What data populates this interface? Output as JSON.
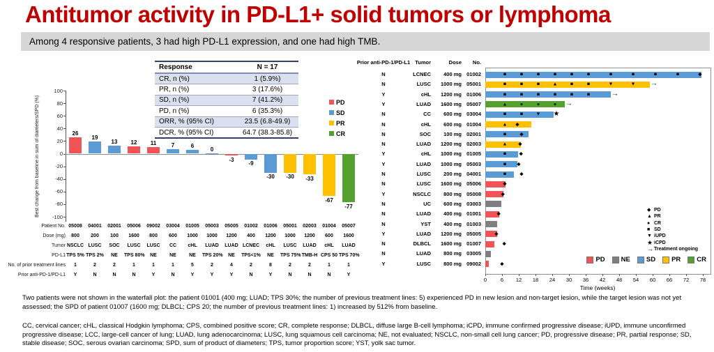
{
  "title": "Antitumor activity in PD-L1+ solid tumors or lymphoma",
  "subtitle": "Among 4 responsive patients, 3 had high PD-L1 expression, and one had high TMB.",
  "colors": {
    "pd": "#f05456",
    "sd": "#5b9bd5",
    "pr": "#ffc000",
    "cr": "#55a12f",
    "ne": "#7f7f7f",
    "title_red": "#c00000"
  },
  "response_table": {
    "header": [
      "Response",
      "N = 17"
    ],
    "rows": [
      [
        "CR, n (%)",
        "1 (5.9%)"
      ],
      [
        "PR, n (%)",
        "3 (17.6%)"
      ],
      [
        "SD, n (%)",
        "7 (41.2%)"
      ],
      [
        "PD, n (%)",
        "6 (35.3%)"
      ],
      [
        "ORR, % (95% CI)",
        "23.5 (6.8-49.9)"
      ],
      [
        "DCR, % (95% CI)",
        "64.7 (38.3-85.8)"
      ]
    ]
  },
  "waterfall_legend": [
    {
      "label": "PD",
      "color": "pd"
    },
    {
      "label": "SD",
      "color": "sd"
    },
    {
      "label": "PR",
      "color": "pr"
    },
    {
      "label": "CR",
      "color": "cr"
    }
  ],
  "chart_data": [
    {
      "type": "bar",
      "name": "waterfall",
      "ylabel": "Best change from baseline in sum of diameters/SPD (%)",
      "ylim": [
        -100,
        100
      ],
      "yticks": [
        100,
        80,
        60,
        40,
        20,
        0,
        -20,
        -40,
        -60,
        -80,
        -100
      ],
      "grid": false,
      "values": [
        26,
        19,
        13,
        12,
        11,
        7,
        6,
        0,
        -3,
        -9,
        -30,
        -30,
        -33,
        -67,
        -77
      ],
      "bar_colors": [
        "pd",
        "sd",
        "sd",
        "pd",
        "pd",
        "sd",
        "sd",
        "sd",
        "pd",
        "sd",
        "sd",
        "pr",
        "pr",
        "pr",
        "cr"
      ],
      "categories": [
        "05008",
        "04001",
        "02001",
        "05006",
        "09002",
        "03004",
        "01005",
        "05003",
        "05005",
        "01002",
        "01006",
        "05001",
        "02003",
        "01004",
        "05007"
      ],
      "patient_rows": [
        {
          "label": "Patient No.",
          "values": [
            "05008",
            "04001",
            "02001",
            "05006",
            "09002",
            "03004",
            "01005",
            "05003",
            "05005",
            "01002",
            "01006",
            "05001",
            "02003",
            "01004",
            "05007"
          ]
        },
        {
          "label": "Dose (mg)",
          "values": [
            "800",
            "200",
            "100",
            "1600",
            "800",
            "600",
            "1000",
            "1000",
            "1200",
            "400",
            "1200",
            "1000",
            "1200",
            "600",
            "1600"
          ]
        },
        {
          "label": "Tumor",
          "values": [
            "NSCLC",
            "LUSC",
            "SOC",
            "LUSC",
            "LUSC",
            "CC",
            "cHL",
            "LUAD",
            "LUAD",
            "LCNEC",
            "cHL",
            "LUSC",
            "LUAD",
            "cHL",
            "LUAD"
          ]
        },
        {
          "label": "PD-L1",
          "values": [
            "TPS 5%",
            "TPS 2%",
            "NE",
            "TPS 80%",
            "NE",
            "NE",
            "NE",
            "TPS 20%",
            "NE",
            "TPS<1%",
            "NE",
            "TPS 75%",
            "TMB-H",
            "CPS 50",
            "TPS 70%"
          ]
        },
        {
          "label": "No. of prior treatment lines",
          "values": [
            "1",
            "2",
            "2",
            "1",
            "1",
            "1",
            "5",
            "2",
            "4",
            "2",
            "8",
            "2",
            "2",
            "1",
            "1"
          ]
        },
        {
          "label": "Prior anti-PD-1/PD-L1",
          "values": [
            "Y",
            "N",
            "N",
            "N",
            "Y",
            "N",
            "Y",
            "Y",
            "Y",
            "N",
            "Y",
            "N",
            "N",
            "N",
            "Y"
          ]
        }
      ]
    },
    {
      "type": "swimmer",
      "name": "swimmer",
      "xlabel": "Time (weeks)",
      "xlim": [
        0,
        80
      ],
      "xticks": [
        0,
        6,
        12,
        18,
        24,
        30,
        36,
        42,
        48,
        54,
        60,
        66,
        72,
        78
      ],
      "col_headers": [
        "Prior anti-PD-1/PD-L1",
        "Tumor",
        "Dose",
        "No."
      ],
      "rows": [
        {
          "prior": "N",
          "tumor": "LCNEC",
          "dose": "400 mg",
          "no": "01002",
          "response": "sd",
          "end": 77.5,
          "ongoing": false,
          "markers": [
            [
              "s",
              7
            ],
            [
              "s",
              13
            ],
            [
              "s",
              19
            ],
            [
              "s",
              25
            ],
            [
              "s",
              31
            ],
            [
              "s",
              37
            ],
            [
              "s",
              45
            ],
            [
              "s",
              53
            ],
            [
              "s",
              61
            ],
            [
              "s",
              69
            ],
            [
              "d",
              77
            ]
          ]
        },
        {
          "prior": "N",
          "tumor": "LUSC",
          "dose": "1000 mg",
          "no": "05001",
          "response": "pr",
          "end": 59,
          "ongoing": true,
          "markers": [
            [
              "s",
              7
            ],
            [
              "s",
              13
            ],
            [
              "s",
              19
            ],
            [
              "t",
              25
            ],
            [
              "s",
              31
            ],
            [
              "s",
              37
            ],
            [
              "v",
              45
            ],
            [
              "v",
              53
            ]
          ]
        },
        {
          "prior": "Y",
          "tumor": "cHL",
          "dose": "1200 mg",
          "no": "01006",
          "response": "sd",
          "end": 45,
          "ongoing": true,
          "markers": [
            [
              "s",
              7
            ],
            [
              "s",
              13
            ],
            [
              "s",
              19
            ],
            [
              "s",
              25
            ],
            [
              "s",
              31
            ],
            [
              "s",
              37
            ]
          ]
        },
        {
          "prior": "Y",
          "tumor": "LUAD",
          "dose": "1600 mg",
          "no": "05007",
          "response": "cr",
          "end": 28.5,
          "ongoing": true,
          "markers": [
            [
              "t",
              7
            ],
            [
              "c",
              13
            ],
            [
              "c",
              19
            ],
            [
              "c",
              25
            ]
          ]
        },
        {
          "prior": "N",
          "tumor": "CC",
          "dose": "600 mg",
          "no": "03004",
          "response": "sd",
          "end": 24.5,
          "ongoing": false,
          "markers": [
            [
              "s",
              7
            ],
            [
              "s",
              13
            ],
            [
              "v",
              19
            ],
            [
              "x",
              25.5
            ]
          ]
        },
        {
          "prior": "N",
          "tumor": "cHL",
          "dose": "600 mg",
          "no": "01004",
          "response": "pr",
          "end": 16.5,
          "ongoing": false,
          "markers": [
            [
              "t",
              7
            ],
            [
              "d",
              11.5
            ]
          ]
        },
        {
          "prior": "N",
          "tumor": "SOC",
          "dose": "100 mg",
          "no": "02001",
          "response": "sd",
          "end": 15.5,
          "ongoing": false,
          "markers": [
            [
              "s",
              7
            ],
            [
              "d",
              13
            ]
          ]
        },
        {
          "prior": "N",
          "tumor": "LUAD",
          "dose": "1200 mg",
          "no": "02003",
          "response": "pr",
          "end": 12.7,
          "ongoing": false,
          "markers": [
            [
              "t",
              7
            ],
            [
              "d",
              12.5
            ]
          ]
        },
        {
          "prior": "Y",
          "tumor": "cHL",
          "dose": "1000 mg",
          "no": "01005",
          "response": "sd",
          "end": 11.8,
          "ongoing": false,
          "markers": [
            [
              "s",
              7
            ],
            [
              "d",
              12.8
            ]
          ]
        },
        {
          "prior": "Y",
          "tumor": "LUAD",
          "dose": "1000 mg",
          "no": "05003",
          "response": "sd",
          "end": 11.4,
          "ongoing": false,
          "markers": [
            [
              "s",
              7
            ],
            [
              "d",
              12
            ]
          ]
        },
        {
          "prior": "N",
          "tumor": "LUSC",
          "dose": "200 mg",
          "no": "04001",
          "response": "sd",
          "end": 10.3,
          "ongoing": false,
          "markers": [
            [
              "s",
              7
            ],
            [
              "d",
              13
            ]
          ]
        },
        {
          "prior": "N",
          "tumor": "LUSC",
          "dose": "1600 mg",
          "no": "05006",
          "response": "pd",
          "end": 7.3,
          "ongoing": false,
          "markers": [
            [
              "d",
              7
            ]
          ]
        },
        {
          "prior": "Y",
          "tumor": "NSCLC",
          "dose": "800 mg",
          "no": "05008",
          "response": "pd",
          "end": 6.5,
          "ongoing": false,
          "markers": [
            [
              "d",
              6.3
            ]
          ]
        },
        {
          "prior": "N",
          "tumor": "UC",
          "dose": "600 mg",
          "no": "03003",
          "response": "ne",
          "end": 5.8,
          "ongoing": false,
          "markers": []
        },
        {
          "prior": "N",
          "tumor": "LUAD",
          "dose": "400 mg",
          "no": "01001",
          "response": "pd",
          "end": 5,
          "ongoing": false,
          "markers": [
            [
              "d",
              4.8
            ]
          ]
        },
        {
          "prior": "N",
          "tumor": "YST",
          "dose": "400 mg",
          "no": "01003",
          "response": "ne",
          "end": 4.3,
          "ongoing": false,
          "markers": []
        },
        {
          "prior": "Y",
          "tumor": "LUAD",
          "dose": "1200 mg",
          "no": "05005",
          "response": "pd",
          "end": 4.2,
          "ongoing": false,
          "markers": [
            [
              "d",
              4
            ]
          ]
        },
        {
          "prior": "N",
          "tumor": "DLBCL",
          "dose": "1600 mg",
          "no": "01007",
          "response": "pd",
          "end": 3.3,
          "ongoing": false,
          "markers": [
            [
              "d",
              6.8
            ]
          ]
        },
        {
          "prior": "N",
          "tumor": "LUAD",
          "dose": "800 mg",
          "no": "03005",
          "response": "ne",
          "end": 2,
          "ongoing": false,
          "markers": []
        },
        {
          "prior": "Y",
          "tumor": "LUSC",
          "dose": "800 mg",
          "no": "09002",
          "response": "pd",
          "end": 1.2,
          "ongoing": false,
          "markers": [
            [
              "d",
              6
            ]
          ]
        }
      ],
      "marker_legend": [
        [
          "d",
          "PD"
        ],
        [
          "t",
          "PR"
        ],
        [
          "c",
          "CR"
        ],
        [
          "s",
          "SD"
        ],
        [
          "v",
          "iUPD"
        ],
        [
          "x",
          "iCPD"
        ],
        [
          "a",
          "Treatment ongoing"
        ]
      ],
      "color_legend": [
        [
          "pd",
          "PD"
        ],
        [
          "ne",
          "NE"
        ],
        [
          "sd",
          "SD"
        ],
        [
          "pr",
          "PR"
        ],
        [
          "cr",
          "CR"
        ]
      ]
    }
  ],
  "footnotes": {
    "note1": "Two patients were not shown in the waterfall plot:  the patient 01001 (400 mg; LUAD; TPS 30%; the number of previous treatment lines: 5) experienced PD in new lesion and non-target lesion, while the target lesion was not yet assessed;    the SPD of patient 01007 (1600 mg; DLBCL; CPS 20; the number of previous treatment lines: 1) increased by 512% from baseline.",
    "note2": "CC, cervical cancer; cHL, classical Hodgkin lymphoma; CPS, combined positive score; CR, complete response; DLBCL, diffuse large B-cell lymphoma; iCPD, immune confirmed progressive disease; iUPD, immune unconfirmed progressive disease; LCC, large-cell cancer of lung; LUAD, lung adenocarcinoma; LUSC, lung squamous cell carcinoma; NE, not evaluated; NSCLC, non-small cell lung cancer; PD, progressive disease; PR, partial response; SD, stable disease; SOC, serous ovarian carcinoma; SPD, sum of product of diameters; TPS, tumor proportion score; YST, yolk sac tumor."
  }
}
